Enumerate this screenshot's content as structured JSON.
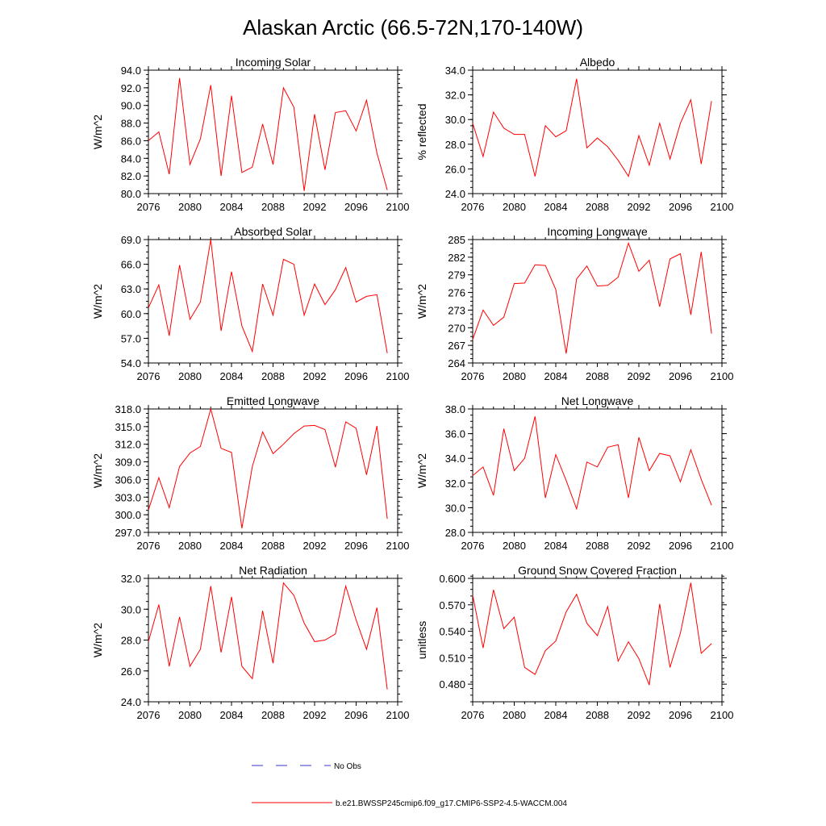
{
  "figure": {
    "title": "Alaskan Arctic (66.5-72N,170-140W)",
    "legend": {
      "obs_label": "No Obs",
      "obs_color": "#3333cc",
      "model_label": "b.e21.BWSSP245cmip6.f09_g17.CMIP6-SSP2-4.5-WACCM.004",
      "model_color": "#ff0000"
    }
  },
  "chart_data": [
    {
      "type": "line",
      "title": "Incoming Solar",
      "ylabel": "W/m^2",
      "xlabel": "",
      "xlim": [
        2076,
        2100
      ],
      "ylim": [
        80.0,
        94.0
      ],
      "yticks": [
        "80.0",
        "82.0",
        "84.0",
        "86.0",
        "88.0",
        "90.0",
        "92.0",
        "94.0"
      ],
      "xticks": [
        "2076",
        "2080",
        "2084",
        "2088",
        "2092",
        "2096",
        "2100"
      ],
      "x": [
        2076,
        2077,
        2078,
        2079,
        2080,
        2081,
        2082,
        2083,
        2084,
        2085,
        2086,
        2087,
        2088,
        2089,
        2090,
        2091,
        2092,
        2093,
        2094,
        2095,
        2096,
        2097,
        2098,
        2099
      ],
      "series": [
        {
          "name": "b.e21.BWSSP245cmip6.f09_g17.CMIP6-SSP2-4.5-WACCM.004",
          "color": "#ff0000",
          "values": [
            86.0,
            87.0,
            82.2,
            93.1,
            83.3,
            86.2,
            92.3,
            82.0,
            91.1,
            82.4,
            83.0,
            87.9,
            83.3,
            92.0,
            89.8,
            80.3,
            89.0,
            82.7,
            89.2,
            89.4,
            87.1,
            90.6,
            84.6,
            80.4
          ]
        }
      ]
    },
    {
      "type": "line",
      "title": "Albedo",
      "ylabel": "% reflected",
      "xlabel": "",
      "xlim": [
        2076,
        2100
      ],
      "ylim": [
        24.0,
        34.0
      ],
      "yticks": [
        "24.0",
        "26.0",
        "28.0",
        "30.0",
        "32.0",
        "34.0"
      ],
      "xticks": [
        "2076",
        "2080",
        "2084",
        "2088",
        "2092",
        "2096",
        "2100"
      ],
      "x": [
        2076,
        2077,
        2078,
        2079,
        2080,
        2081,
        2082,
        2083,
        2084,
        2085,
        2086,
        2087,
        2088,
        2089,
        2090,
        2091,
        2092,
        2093,
        2094,
        2095,
        2096,
        2097,
        2098,
        2099
      ],
      "series": [
        {
          "name": "b.e21.BWSSP245cmip6.f09_g17.CMIP6-SSP2-4.5-WACCM.004",
          "color": "#ff0000",
          "values": [
            29.7,
            27.0,
            30.6,
            29.3,
            28.8,
            28.8,
            25.4,
            29.5,
            28.6,
            29.1,
            33.3,
            27.7,
            28.5,
            27.8,
            26.7,
            25.4,
            28.7,
            26.3,
            29.7,
            26.8,
            29.7,
            31.6,
            26.4,
            31.5
          ]
        }
      ]
    },
    {
      "type": "line",
      "title": "Absorbed Solar",
      "ylabel": "W/m^2",
      "xlabel": "",
      "xlim": [
        2076,
        2100
      ],
      "ylim": [
        54.0,
        69.0
      ],
      "yticks": [
        "54.0",
        "57.0",
        "60.0",
        "63.0",
        "66.0",
        "69.0"
      ],
      "xticks": [
        "2076",
        "2080",
        "2084",
        "2088",
        "2092",
        "2096",
        "2100"
      ],
      "x": [
        2076,
        2077,
        2078,
        2079,
        2080,
        2081,
        2082,
        2083,
        2084,
        2085,
        2086,
        2087,
        2088,
        2089,
        2090,
        2091,
        2092,
        2093,
        2094,
        2095,
        2096,
        2097,
        2098,
        2099
      ],
      "series": [
        {
          "name": "b.e21.BWSSP245cmip6.f09_g17.CMIP6-SSP2-4.5-WACCM.004",
          "color": "#ff0000",
          "values": [
            60.7,
            63.5,
            57.3,
            65.9,
            59.3,
            61.4,
            69.0,
            57.9,
            65.1,
            58.5,
            55.4,
            63.6,
            59.8,
            66.6,
            66.0,
            59.8,
            63.6,
            61.1,
            62.9,
            65.6,
            61.4,
            62.1,
            62.3,
            55.2
          ]
        }
      ]
    },
    {
      "type": "line",
      "title": "Incoming Longwave",
      "ylabel": "W/m^2",
      "xlabel": "",
      "xlim": [
        2076,
        2100
      ],
      "ylim": [
        264,
        285
      ],
      "yticks": [
        "264",
        "267",
        "270",
        "273",
        "276",
        "279",
        "282",
        "285"
      ],
      "xticks": [
        "2076",
        "2080",
        "2084",
        "2088",
        "2092",
        "2096",
        "2100"
      ],
      "x": [
        2076,
        2077,
        2078,
        2079,
        2080,
        2081,
        2082,
        2083,
        2084,
        2085,
        2086,
        2087,
        2088,
        2089,
        2090,
        2091,
        2092,
        2093,
        2094,
        2095,
        2096,
        2097,
        2098,
        2099
      ],
      "series": [
        {
          "name": "b.e21.BWSSP245cmip6.f09_g17.CMIP6-SSP2-4.5-WACCM.004",
          "color": "#ff0000",
          "values": [
            268.0,
            273.0,
            270.4,
            271.8,
            277.5,
            277.6,
            280.7,
            280.6,
            276.5,
            265.6,
            278.3,
            280.5,
            277.1,
            277.2,
            278.6,
            284.4,
            279.6,
            281.5,
            273.6,
            281.7,
            282.6,
            272.2,
            282.9,
            269.0
          ]
        }
      ]
    },
    {
      "type": "line",
      "title": "Emitted Longwave",
      "ylabel": "W/m^2",
      "xlabel": "",
      "xlim": [
        2076,
        2100
      ],
      "ylim": [
        297.0,
        318.0
      ],
      "yticks": [
        "297.0",
        "300.0",
        "303.0",
        "306.0",
        "309.0",
        "312.0",
        "315.0",
        "318.0"
      ],
      "xticks": [
        "2076",
        "2080",
        "2084",
        "2088",
        "2092",
        "2096",
        "2100"
      ],
      "x": [
        2076,
        2077,
        2078,
        2079,
        2080,
        2081,
        2082,
        2083,
        2084,
        2085,
        2086,
        2087,
        2088,
        2089,
        2090,
        2091,
        2092,
        2093,
        2094,
        2095,
        2096,
        2097,
        2098,
        2099
      ],
      "series": [
        {
          "name": "b.e21.BWSSP245cmip6.f09_g17.CMIP6-SSP2-4.5-WACCM.004",
          "color": "#ff0000",
          "values": [
            300.8,
            306.3,
            301.2,
            308.2,
            310.5,
            311.6,
            318.0,
            311.3,
            310.6,
            297.7,
            308.2,
            314.1,
            310.4,
            312.0,
            313.8,
            315.1,
            315.2,
            314.5,
            308.1,
            315.8,
            314.7,
            306.8,
            315.1,
            299.3
          ]
        }
      ]
    },
    {
      "type": "line",
      "title": "Net Longwave",
      "ylabel": "W/m^2",
      "xlabel": "",
      "xlim": [
        2076,
        2100
      ],
      "ylim": [
        28.0,
        38.0
      ],
      "yticks": [
        "28.0",
        "30.0",
        "32.0",
        "34.0",
        "36.0",
        "38.0"
      ],
      "xticks": [
        "2076",
        "2080",
        "2084",
        "2088",
        "2092",
        "2096",
        "2100"
      ],
      "x": [
        2076,
        2077,
        2078,
        2079,
        2080,
        2081,
        2082,
        2083,
        2084,
        2085,
        2086,
        2087,
        2088,
        2089,
        2090,
        2091,
        2092,
        2093,
        2094,
        2095,
        2096,
        2097,
        2098,
        2099
      ],
      "series": [
        {
          "name": "b.e21.BWSSP245cmip6.f09_g17.CMIP6-SSP2-4.5-WACCM.004",
          "color": "#ff0000",
          "values": [
            32.6,
            33.3,
            31.0,
            36.4,
            33.0,
            34.0,
            37.4,
            30.8,
            34.3,
            32.2,
            29.9,
            33.7,
            33.3,
            34.9,
            35.1,
            30.8,
            35.7,
            33.0,
            34.4,
            34.2,
            32.1,
            34.7,
            32.3,
            30.2
          ]
        }
      ]
    },
    {
      "type": "line",
      "title": "Net Radiation",
      "ylabel": "W/m^2",
      "xlabel": "",
      "xlim": [
        2076,
        2100
      ],
      "ylim": [
        24.0,
        32.0
      ],
      "yticks": [
        "24.0",
        "26.0",
        "28.0",
        "30.0",
        "32.0"
      ],
      "xticks": [
        "2076",
        "2080",
        "2084",
        "2088",
        "2092",
        "2096",
        "2100"
      ],
      "x": [
        2076,
        2077,
        2078,
        2079,
        2080,
        2081,
        2082,
        2083,
        2084,
        2085,
        2086,
        2087,
        2088,
        2089,
        2090,
        2091,
        2092,
        2093,
        2094,
        2095,
        2096,
        2097,
        2098,
        2099
      ],
      "series": [
        {
          "name": "b.e21.BWSSP245cmip6.f09_g17.CMIP6-SSP2-4.5-WACCM.004",
          "color": "#ff0000",
          "values": [
            27.9,
            30.3,
            26.3,
            29.5,
            26.3,
            27.4,
            31.5,
            27.2,
            30.8,
            26.3,
            25.5,
            29.9,
            26.5,
            31.7,
            30.9,
            29.1,
            27.9,
            28.0,
            28.4,
            31.5,
            29.3,
            27.4,
            30.1,
            24.8
          ]
        }
      ]
    },
    {
      "type": "line",
      "title": "Ground Snow Covered Fraction",
      "ylabel": "unitless",
      "xlabel": "",
      "xlim": [
        2076,
        2100
      ],
      "ylim": [
        0.46,
        0.6
      ],
      "yticks": [
        "0.480",
        "0.510",
        "0.540",
        "0.570",
        "0.600"
      ],
      "xticks": [
        "2076",
        "2080",
        "2084",
        "2088",
        "2092",
        "2096",
        "2100"
      ],
      "x": [
        2076,
        2077,
        2078,
        2079,
        2080,
        2081,
        2082,
        2083,
        2084,
        2085,
        2086,
        2087,
        2088,
        2089,
        2090,
        2091,
        2092,
        2093,
        2094,
        2095,
        2096,
        2097,
        2098,
        2099
      ],
      "series": [
        {
          "name": "b.e21.BWSSP245cmip6.f09_g17.CMIP6-SSP2-4.5-WACCM.004",
          "color": "#ff0000",
          "values": [
            0.581,
            0.521,
            0.587,
            0.543,
            0.556,
            0.499,
            0.491,
            0.518,
            0.529,
            0.562,
            0.582,
            0.549,
            0.535,
            0.568,
            0.506,
            0.528,
            0.509,
            0.479,
            0.571,
            0.499,
            0.538,
            0.595,
            0.515,
            0.526
          ]
        }
      ]
    }
  ]
}
